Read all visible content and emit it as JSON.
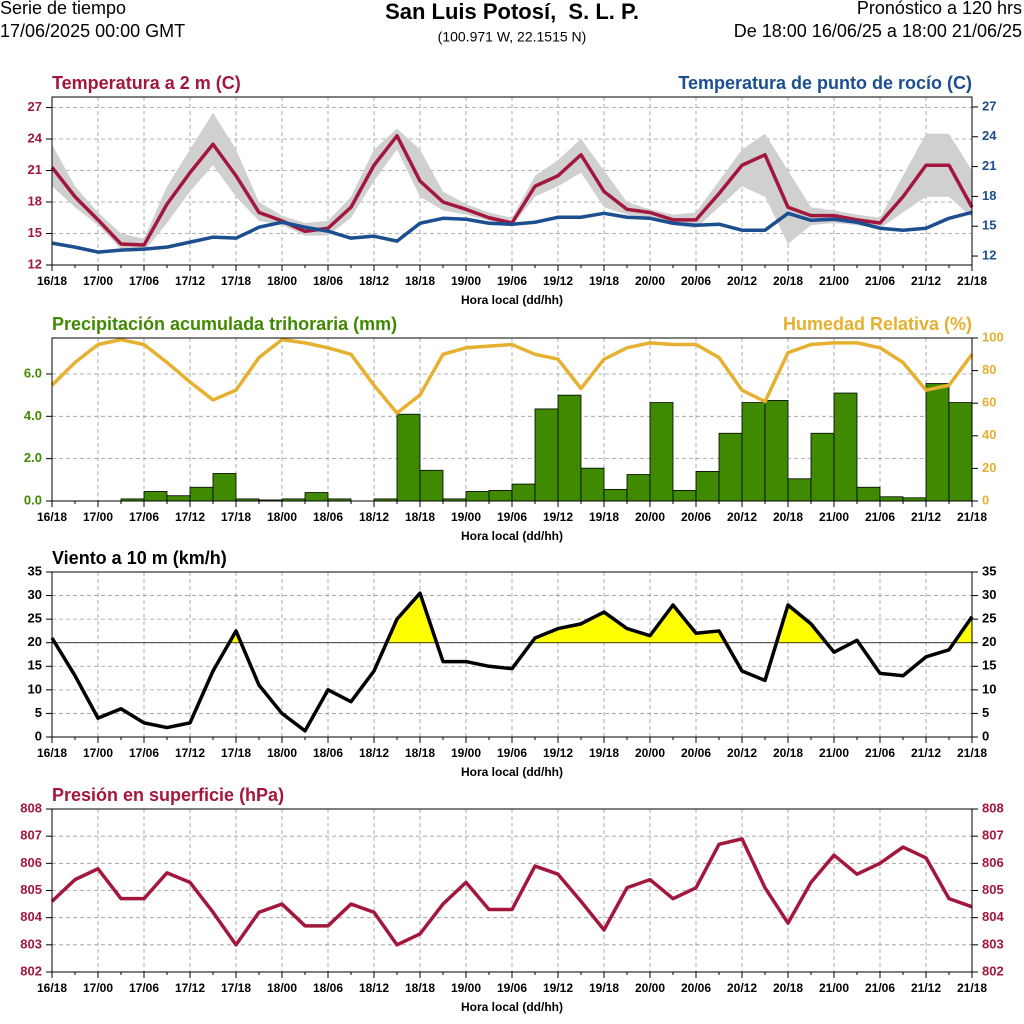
{
  "header": {
    "left": [
      "Serie de tiempo",
      "17/06/2025 00:00 GMT"
    ],
    "title": "San Luis Potosí,  S. L. P.",
    "coords": "(100.971 W, 22.1515 N)",
    "right": [
      "Pronóstico a 120 hrs",
      "De 18:00 16/06/25 a 18:00 21/06/25"
    ]
  },
  "chart_data": [
    {
      "type": "line",
      "xlabel": "Hora local (dd/hh)",
      "grid": true,
      "categories": [
        "16/18",
        null,
        "17/00",
        null,
        "17/06",
        null,
        "17/12",
        null,
        "17/18",
        null,
        "18/00",
        null,
        "18/06",
        null,
        "18/12",
        null,
        "18/18",
        null,
        "19/00",
        null,
        "19/06",
        null,
        "19/12",
        null,
        "19/18",
        null,
        "20/00",
        null,
        "20/06",
        null,
        "20/12",
        null,
        "20/18",
        null,
        "21/00",
        null,
        "21/06",
        null,
        "21/12",
        null,
        "21/18"
      ],
      "series": [
        {
          "name": "Temperatura a 2 m (C)",
          "color": "#a3173d",
          "values": [
            21.3,
            18.5,
            16.3,
            14.0,
            13.9,
            17.8,
            20.8,
            23.5,
            20.5,
            17.0,
            16.2,
            15.2,
            15.5,
            17.5,
            21.5,
            24.3,
            20.0,
            18.0,
            17.3,
            16.5,
            16.0,
            19.5,
            20.5,
            22.5,
            19.0,
            17.3,
            17.0,
            16.3,
            16.3,
            18.8,
            21.5,
            22.5,
            17.5,
            16.7,
            16.7,
            16.3,
            16.0,
            18.5,
            21.5,
            21.5,
            17.5
          ]
        },
        {
          "name": "Temperatura de punto de rocío (C)",
          "color": "#1b4f8f",
          "axis": "y2",
          "values": [
            13.3,
            12.9,
            12.4,
            12.6,
            12.7,
            12.9,
            13.4,
            13.9,
            13.8,
            14.9,
            15.4,
            14.9,
            14.5,
            13.8,
            14.0,
            13.5,
            15.3,
            15.8,
            15.7,
            15.3,
            15.2,
            15.4,
            15.9,
            15.9,
            16.3,
            15.9,
            15.8,
            15.3,
            15.1,
            15.2,
            14.6,
            14.6,
            16.3,
            15.6,
            15.7,
            15.4,
            14.8,
            14.6,
            14.8,
            15.8,
            16.4
          ]
        }
      ],
      "band": {
        "color": "#d0d0d0",
        "upper": [
          23.5,
          19.5,
          17,
          15,
          14.5,
          19.5,
          23,
          26.5,
          23,
          18,
          16.7,
          16,
          16.2,
          18.5,
          23,
          25,
          23,
          19,
          17.8,
          17,
          16.5,
          20.5,
          22,
          24,
          21,
          18,
          17.3,
          16.8,
          17,
          20,
          23,
          24.5,
          21,
          17.5,
          17.2,
          16.8,
          16.5,
          20.5,
          24.5,
          24.5,
          21
        ],
        "lower": [
          19.5,
          17.5,
          15.8,
          13.5,
          13.3,
          16,
          19,
          21.5,
          18.5,
          16.2,
          15.8,
          14.8,
          14.8,
          16.5,
          20,
          23,
          18.5,
          17.2,
          16.8,
          16.2,
          15.7,
          18.5,
          19.5,
          20.8,
          17.5,
          16.8,
          16.5,
          15.8,
          15.5,
          17.5,
          19.5,
          18.5,
          14,
          15.8,
          16,
          15.8,
          15.5,
          17,
          18.5,
          18.5,
          16.5
        ]
      },
      "ylim": [
        12,
        28
      ],
      "yticks": [
        12,
        15,
        18,
        21,
        24,
        27
      ],
      "y2lim": [
        11.1,
        28
      ],
      "y2ticks": [
        12,
        15,
        18,
        21,
        24,
        27
      ]
    },
    {
      "type": "bar",
      "xlabel": "Hora local (dd/hh)",
      "grid": true,
      "categories": [
        "16/18",
        null,
        "17/00",
        null,
        "17/06",
        null,
        "17/12",
        null,
        "17/18",
        null,
        "18/00",
        null,
        "18/06",
        null,
        "18/12",
        null,
        "18/18",
        null,
        "19/00",
        null,
        "19/06",
        null,
        "19/12",
        null,
        "19/18",
        null,
        "20/00",
        null,
        "20/06",
        null,
        "20/12",
        null,
        "20/18",
        null,
        "21/00",
        null,
        "21/06",
        null,
        "21/12",
        null,
        "21/18"
      ],
      "series": [
        {
          "name": "Precipitación acumulada trihoraria (mm)",
          "color": "#3f8a00",
          "values": [
            null,
            0,
            0,
            0,
            0.1,
            0.45,
            0.25,
            0.65,
            1.3,
            0.1,
            0.05,
            0.1,
            0.4,
            0.1,
            0,
            0.1,
            4.1,
            1.45,
            0.1,
            0.45,
            0.5,
            0.8,
            4.35,
            5.0,
            1.55,
            0.55,
            1.25,
            4.65,
            0.5,
            1.4,
            3.2,
            4.65,
            4.75,
            1.05,
            3.2,
            5.1,
            0.65,
            0.2,
            0.15,
            5.55,
            4.65
          ]
        },
        {
          "name": "Humedad Relativa (%)",
          "type": "line",
          "color": "#e6b030",
          "axis": "y2",
          "values": [
            71,
            85,
            96,
            99,
            96,
            85,
            73,
            62,
            68,
            88,
            99,
            97,
            94,
            90,
            71,
            54,
            65,
            90,
            94,
            95,
            96,
            90,
            87,
            69,
            87,
            94,
            97,
            96,
            96,
            88,
            68,
            61,
            91,
            96,
            97,
            97,
            94,
            85,
            68,
            71,
            90
          ]
        }
      ],
      "ylim": [
        0,
        7.7
      ],
      "yticks": [
        {
          "value": 0,
          "label": "0.0"
        },
        {
          "value": 2,
          "label": "2.0"
        },
        {
          "value": 4,
          "label": "4.0"
        },
        {
          "value": 6,
          "label": "6.0"
        }
      ],
      "y2lim": [
        0,
        100
      ],
      "y2ticks": [
        0,
        20,
        40,
        60,
        80,
        100
      ]
    },
    {
      "type": "line",
      "xlabel": "Hora local (dd/hh)",
      "grid": true,
      "fill_above": 20,
      "fill_color": "#ffff00",
      "categories": [
        "16/18",
        null,
        "17/00",
        null,
        "17/06",
        null,
        "17/12",
        null,
        "17/18",
        null,
        "18/00",
        null,
        "18/06",
        null,
        "18/12",
        null,
        "18/18",
        null,
        "19/00",
        null,
        "19/06",
        null,
        "19/12",
        null,
        "19/18",
        null,
        "20/00",
        null,
        "20/06",
        null,
        "20/12",
        null,
        "20/18",
        null,
        "21/00",
        null,
        "21/06",
        null,
        "21/12",
        null,
        "21/18"
      ],
      "series": [
        {
          "name": "Viento a 10 m (km/h)",
          "color": "#000000",
          "values": [
            21,
            13,
            4,
            6,
            3,
            2,
            3,
            14,
            22.5,
            11,
            5,
            1.3,
            10,
            7.5,
            14,
            25,
            30.5,
            16,
            16,
            15,
            14.5,
            21,
            23,
            24,
            26.5,
            23,
            21.5,
            28,
            22,
            22.5,
            14,
            12,
            28,
            24,
            18,
            20.5,
            13.5,
            13,
            17,
            18.5,
            25.5
          ]
        }
      ],
      "ylim": [
        0,
        35
      ],
      "yticks": [
        0,
        5,
        10,
        15,
        20,
        25,
        30,
        35
      ],
      "y2lim": [
        0,
        35
      ],
      "y2ticks": [
        0,
        5,
        10,
        15,
        20,
        25,
        30,
        35
      ]
    },
    {
      "type": "line",
      "xlabel": "Hora local (dd/hh)",
      "grid": true,
      "categories": [
        "16/18",
        null,
        "17/00",
        null,
        "17/06",
        null,
        "17/12",
        null,
        "17/18",
        null,
        "18/00",
        null,
        "18/06",
        null,
        "18/12",
        null,
        "18/18",
        null,
        "19/00",
        null,
        "19/06",
        null,
        "19/12",
        null,
        "19/18",
        null,
        "20/00",
        null,
        "20/06",
        null,
        "20/12",
        null,
        "20/18",
        null,
        "21/00",
        null,
        "21/06",
        null,
        "21/12",
        null,
        "21/18"
      ],
      "series": [
        {
          "name": "Presión en superficie (hPa)",
          "color": "#a3173d",
          "values": [
            804.6,
            805.4,
            805.8,
            804.7,
            804.7,
            805.65,
            805.3,
            804.2,
            803.0,
            804.2,
            804.5,
            803.7,
            803.7,
            804.5,
            804.2,
            803.0,
            803.4,
            804.5,
            805.3,
            804.3,
            804.3,
            805.9,
            805.6,
            804.6,
            803.55,
            805.1,
            805.4,
            804.7,
            805.1,
            806.7,
            806.9,
            805.1,
            803.8,
            805.3,
            806.3,
            805.6,
            806.0,
            806.6,
            806.2,
            804.7,
            804.4
          ]
        }
      ],
      "ylim": [
        802,
        808
      ],
      "yticks": [
        802,
        803,
        804,
        805,
        806,
        807,
        808
      ],
      "y2lim": [
        802,
        808
      ],
      "y2ticks": [
        802,
        803,
        804,
        805,
        806,
        807,
        808
      ]
    }
  ]
}
